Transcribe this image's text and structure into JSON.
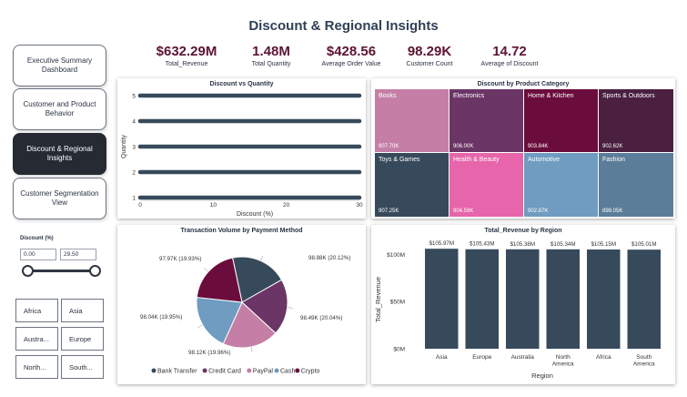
{
  "title": "Discount & Regional Insights",
  "nav": [
    {
      "label": "Executive Summary Dashboard",
      "active": false
    },
    {
      "label": "Customer and Product Behavior",
      "active": false
    },
    {
      "label": "Discount & Regional Insights",
      "active": true
    },
    {
      "label": "Customer Segmentation View",
      "active": false
    }
  ],
  "kpis": [
    {
      "value": "$632.29M",
      "label": "Total_Revenue"
    },
    {
      "value": "1.48M",
      "label": "Total Quantity"
    },
    {
      "value": "$428.56",
      "label": "Average Order Value"
    },
    {
      "value": "98.29K",
      "label": "Customer Count"
    },
    {
      "value": "14.72",
      "label": "Average of Discount"
    }
  ],
  "slicer": {
    "title": "Discount (%)",
    "min": "0.00",
    "max": "29.50",
    "range": [
      0,
      29.5
    ],
    "domain": [
      0,
      29.5
    ]
  },
  "regions": [
    "Africa",
    "Asia",
    "Austra...",
    "Europe",
    "North...",
    "South..."
  ],
  "colors": {
    "dark_slate": "#374a5c",
    "maroon": "#6b0d3c",
    "purple": "#6b3566",
    "pink_mauve": "#c57fa6",
    "steel_blue": "#6f9cc0",
    "hot_pink": "#e765ab"
  },
  "chart_data": [
    {
      "type": "scatter",
      "title": "Discount vs Quantity",
      "xlabel": "Discount (%)",
      "ylabel": "Quantity",
      "xlim": [
        0,
        30
      ],
      "ylim": [
        1,
        5
      ],
      "xticks": [
        0,
        10,
        20,
        30
      ],
      "yticks": [
        1,
        2,
        3,
        4,
        5
      ],
      "series": [
        {
          "y": 1,
          "x_range": [
            0,
            30
          ]
        },
        {
          "y": 2,
          "x_range": [
            0,
            30
          ]
        },
        {
          "y": 3,
          "x_range": [
            0,
            30
          ]
        },
        {
          "y": 4,
          "x_range": [
            0,
            30
          ]
        },
        {
          "y": 5,
          "x_range": [
            0,
            30
          ]
        }
      ]
    },
    {
      "type": "treemap",
      "title": "Discount by Product Category",
      "items": [
        {
          "name": "Books",
          "label": "907.70K",
          "color": "#c57fa6"
        },
        {
          "name": "Electronics",
          "label": "906.00K",
          "color": "#6b3566"
        },
        {
          "name": "Home & Kitchen",
          "label": "903.84K",
          "color": "#6b0d3c"
        },
        {
          "name": "Sports & Outdoors",
          "label": "902.62K",
          "color": "#4a1f40"
        },
        {
          "name": "Toys & Games",
          "label": "907.25K",
          "color": "#374a5c"
        },
        {
          "name": "Health & Beauty",
          "label": "904.59K",
          "color": "#e765ab"
        },
        {
          "name": "Automotive",
          "label": "902.87K",
          "color": "#6f9cc0"
        },
        {
          "name": "Fashion",
          "label": "899.05K",
          "color": "#5c7d99"
        }
      ]
    },
    {
      "type": "pie",
      "title": "Transaction Volume by Payment Method",
      "slices": [
        {
          "name": "Bank Transfer",
          "value": 98.88,
          "label": "98.88K (20.12%)",
          "color": "#374a5c"
        },
        {
          "name": "Credit Card",
          "value": 98.49,
          "label": "98.49K (20.04%)",
          "color": "#6b3566"
        },
        {
          "name": "PayPal",
          "value": 98.12,
          "label": "98.12K (19.96%)",
          "color": "#c57fa6"
        },
        {
          "name": "Cash",
          "value": 98.04,
          "label": "98.04K (19.95%)",
          "color": "#6f9cc0"
        },
        {
          "name": "Crypto",
          "value": 97.97,
          "label": "97.97K (19.93%)",
          "color": "#6b0d3c"
        }
      ]
    },
    {
      "type": "bar",
      "title": "Total_Revenue by Region",
      "xlabel": "Region",
      "ylabel": "Total_Revenue",
      "ylim": [
        0,
        110
      ],
      "yticks": [
        {
          "v": 0,
          "label": "$0M"
        },
        {
          "v": 50,
          "label": "$50M"
        },
        {
          "v": 100,
          "label": "$100M"
        }
      ],
      "categories": [
        "Asia",
        "Europe",
        "Australia",
        "North America",
        "Africa",
        "South America"
      ],
      "values": [
        105.97,
        105.43,
        105.38,
        105.34,
        105.15,
        105.01
      ],
      "labels": [
        "$105.97M",
        "$105.43M",
        "$105.38M",
        "$105.34M",
        "$105.15M",
        "$105.01M"
      ]
    }
  ]
}
